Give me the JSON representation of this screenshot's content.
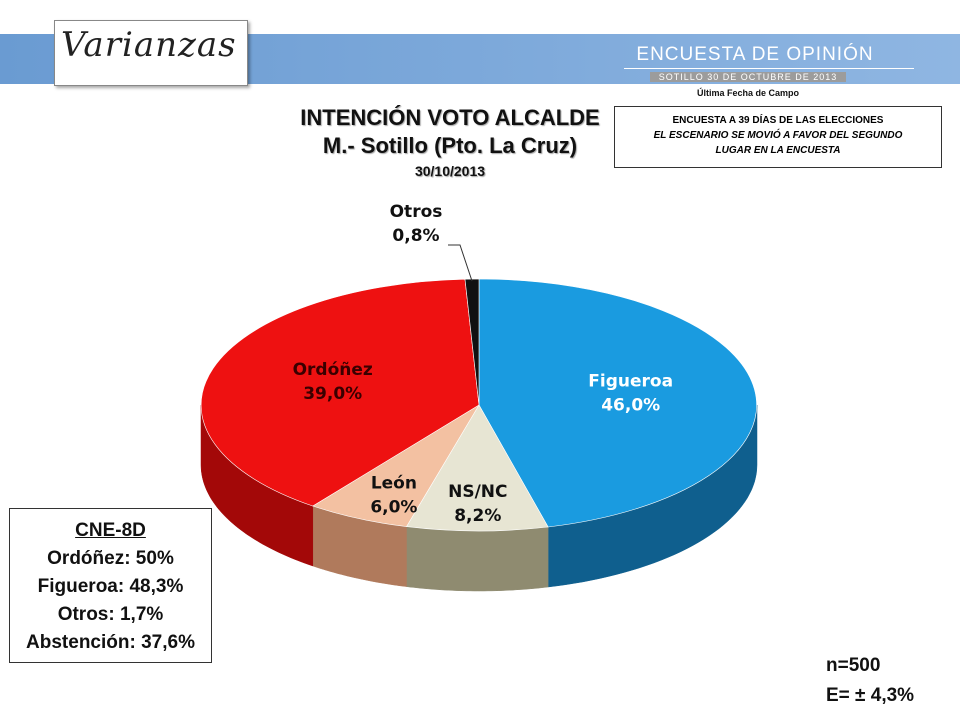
{
  "header": {
    "logo_text": "Varianzas",
    "survey_title": "ENCUESTA DE OPINIÓN",
    "survey_location_date": "SOTILLO  30  DE  OCTUBRE  DE 2013",
    "fieldwork_label": "Última Fecha de Campo"
  },
  "note": {
    "line1": "ENCUESTA A 39 DÍAS DE LAS ELECCIONES",
    "line2": "EL ESCENARIO SE MOVIÓ A FAVOR DEL SEGUNDO",
    "line3": "LUGAR EN LA ENCUESTA"
  },
  "cne": {
    "title": "CNE-8D",
    "lines": [
      "Ordóñez: 50%",
      "Figueroa: 48,3%",
      "Otros: 1,7%",
      "Abstención: 37,6%"
    ]
  },
  "sample": {
    "n": "n=500",
    "error": "E= ± 4,3%"
  },
  "chart_data": {
    "type": "pie",
    "title": "INTENCIÓN VOTO ALCALDE",
    "subtitle": "M.- Sotillo (Pto. La Cruz)",
    "date": "30/10/2013",
    "slices": [
      {
        "name": "Figueroa",
        "value": 46.0,
        "label": "46,0%",
        "color": "#1a9be0",
        "side": "#0f5f8e",
        "text_color": "#ffffff"
      },
      {
        "name": "NS/NC",
        "value": 8.2,
        "label": "8,2%",
        "color": "#e7e5d3",
        "side": "#8f8b70",
        "text_color": "#111111"
      },
      {
        "name": "León",
        "value": 6.0,
        "label": "6,0%",
        "color": "#f3c1a2",
        "side": "#b07a5c",
        "text_color": "#111111"
      },
      {
        "name": "Ordóñez",
        "value": 39.0,
        "label": "39,0%",
        "color": "#ee1111",
        "side": "#a30808",
        "text_color": "#3a0000"
      },
      {
        "name": "Otros",
        "value": 0.8,
        "label": "0,8%",
        "color": "#111111",
        "side": "#000000",
        "text_color": "#111111"
      }
    ]
  }
}
